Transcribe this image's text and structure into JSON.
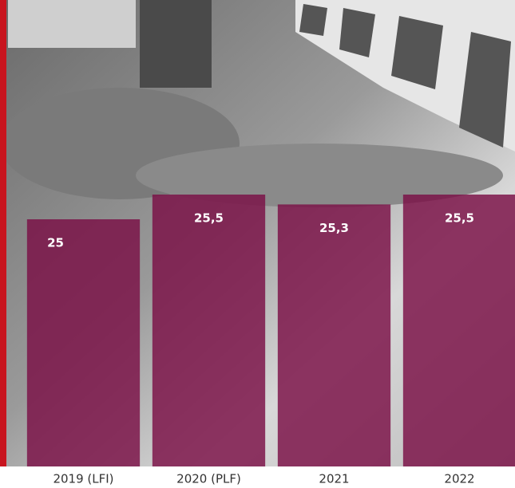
{
  "chart_data": {
    "type": "bar",
    "categories": [
      "2019 (LFI)",
      "2020 (PLF)",
      "2021",
      "2022"
    ],
    "values": [
      25,
      25.5,
      25.3,
      25.5
    ],
    "value_labels": [
      "25",
      "25,5",
      "25,3",
      "25,5"
    ],
    "color": "#7a0f45",
    "ylim": [
      20,
      26
    ]
  }
}
